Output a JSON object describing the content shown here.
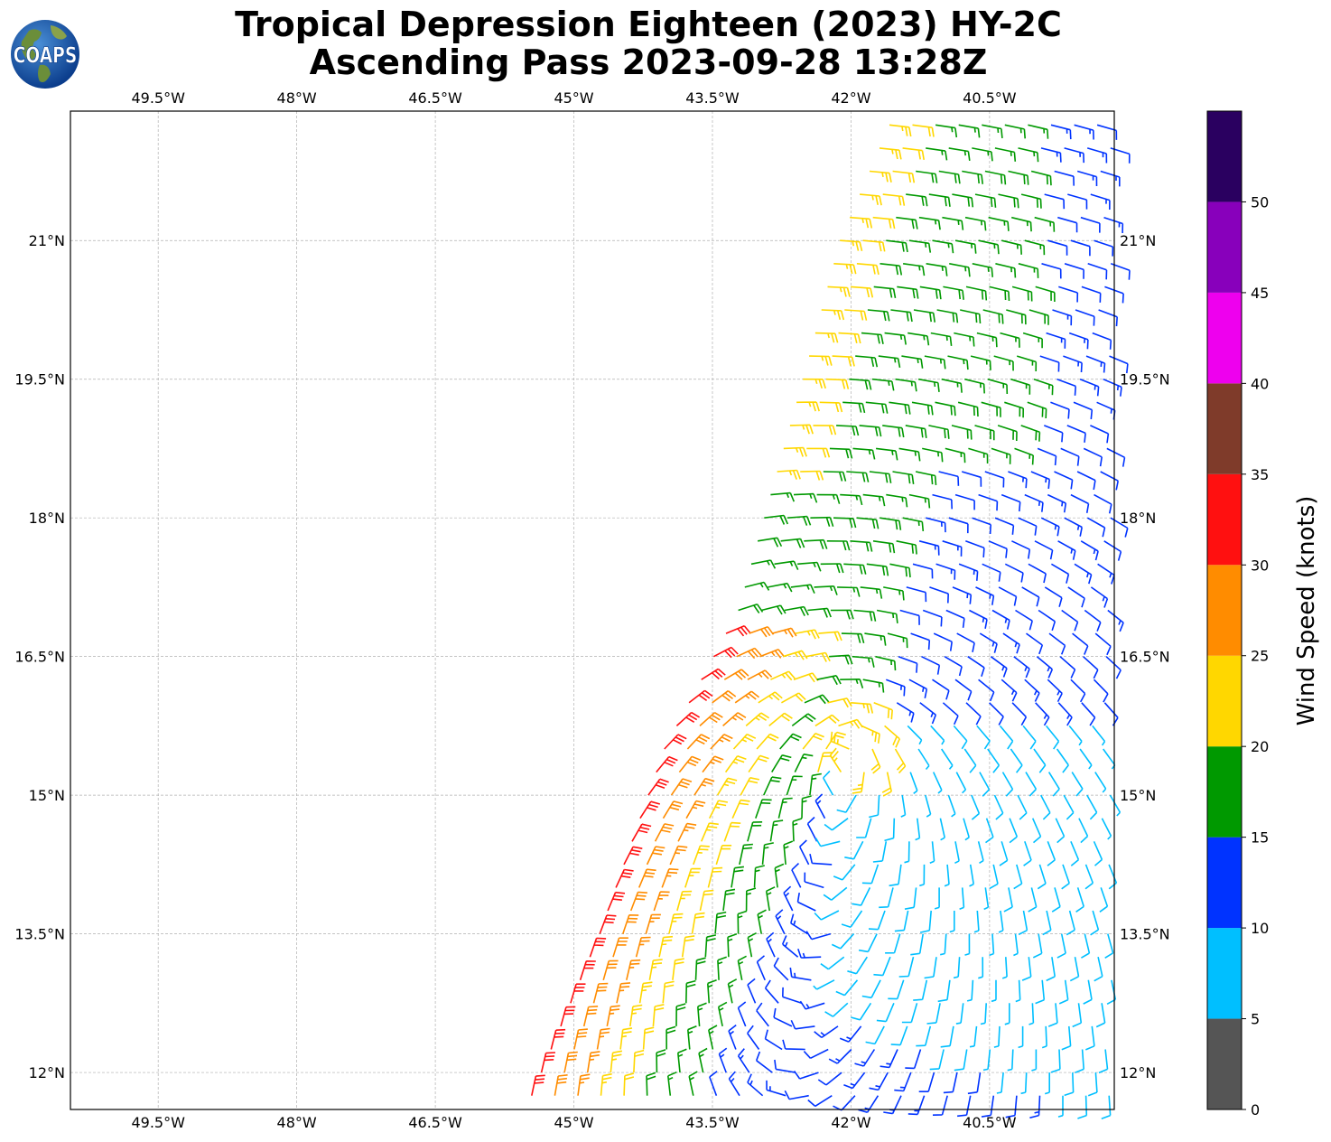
{
  "title": {
    "line1": "Tropical Depression Eighteen (2023) HY-2C",
    "line2": "Ascending Pass 2023-09-28 13:28Z"
  },
  "logo": {
    "text": "COAPS",
    "icon": "globe-logo"
  },
  "map": {
    "lon_ticks": [
      "49.5°W",
      "48°W",
      "46.5°W",
      "45°W",
      "43.5°W",
      "42°W",
      "40.5°W"
    ],
    "lat_ticks": [
      "21°N",
      "19.5°N",
      "18°N",
      "16.5°N",
      "15°N",
      "13.5°N",
      "12°N"
    ],
    "lon_values": [
      -49.5,
      -48,
      -46.5,
      -45,
      -43.5,
      -42,
      -40.5
    ],
    "lat_values": [
      21,
      19.5,
      18,
      16.5,
      15,
      13.5,
      12
    ],
    "lon_range": [
      -50.45,
      -39.15
    ],
    "lat_range": [
      11.6,
      22.4
    ],
    "swath_left_edge": [
      [
        -45.6,
        11.6
      ],
      [
        -44.8,
        13.5
      ],
      [
        -44.1,
        15.5
      ],
      [
        -43.3,
        17.0
      ],
      [
        -42.6,
        19.5
      ],
      [
        -42.2,
        21.0
      ],
      [
        -41.6,
        22.4
      ]
    ],
    "storm_center": [
      -42.0,
      15.6
    ],
    "gridlines": true
  },
  "colorbar": {
    "label": "Wind Speed (knots)",
    "ticks": [
      "0",
      "5",
      "10",
      "15",
      "20",
      "25",
      "30",
      "35",
      "40",
      "45",
      "50"
    ],
    "bins": [
      {
        "min": 0,
        "max": 5,
        "color": "#555555"
      },
      {
        "min": 5,
        "max": 10,
        "color": "#00bfff"
      },
      {
        "min": 10,
        "max": 15,
        "color": "#0033ff"
      },
      {
        "min": 15,
        "max": 20,
        "color": "#009900"
      },
      {
        "min": 20,
        "max": 25,
        "color": "#ffd700"
      },
      {
        "min": 25,
        "max": 30,
        "color": "#ff8c00"
      },
      {
        "min": 30,
        "max": 35,
        "color": "#ff1010"
      },
      {
        "min": 35,
        "max": 40,
        "color": "#7f3b2a"
      },
      {
        "min": 40,
        "max": 45,
        "color": "#ee00ee"
      },
      {
        "min": 45,
        "max": 50,
        "color": "#8800bb"
      },
      {
        "min": 50,
        "max": 55,
        "color": "#2a0060"
      }
    ]
  }
}
